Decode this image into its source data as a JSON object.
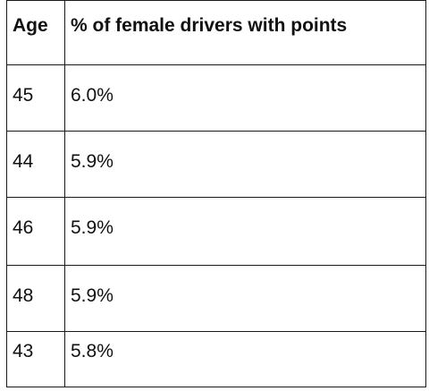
{
  "table": {
    "headers": [
      "Age",
      "% of female drivers with points"
    ],
    "rows": [
      [
        "45",
        "6.0%"
      ],
      [
        "44",
        "5.9%"
      ],
      [
        "46",
        "5.9%"
      ],
      [
        "48",
        "5.9%"
      ],
      [
        "43",
        "5.8%"
      ]
    ]
  },
  "colors": {
    "text": "#111111",
    "border": "#1a1a1a",
    "background": "#ffffff"
  }
}
